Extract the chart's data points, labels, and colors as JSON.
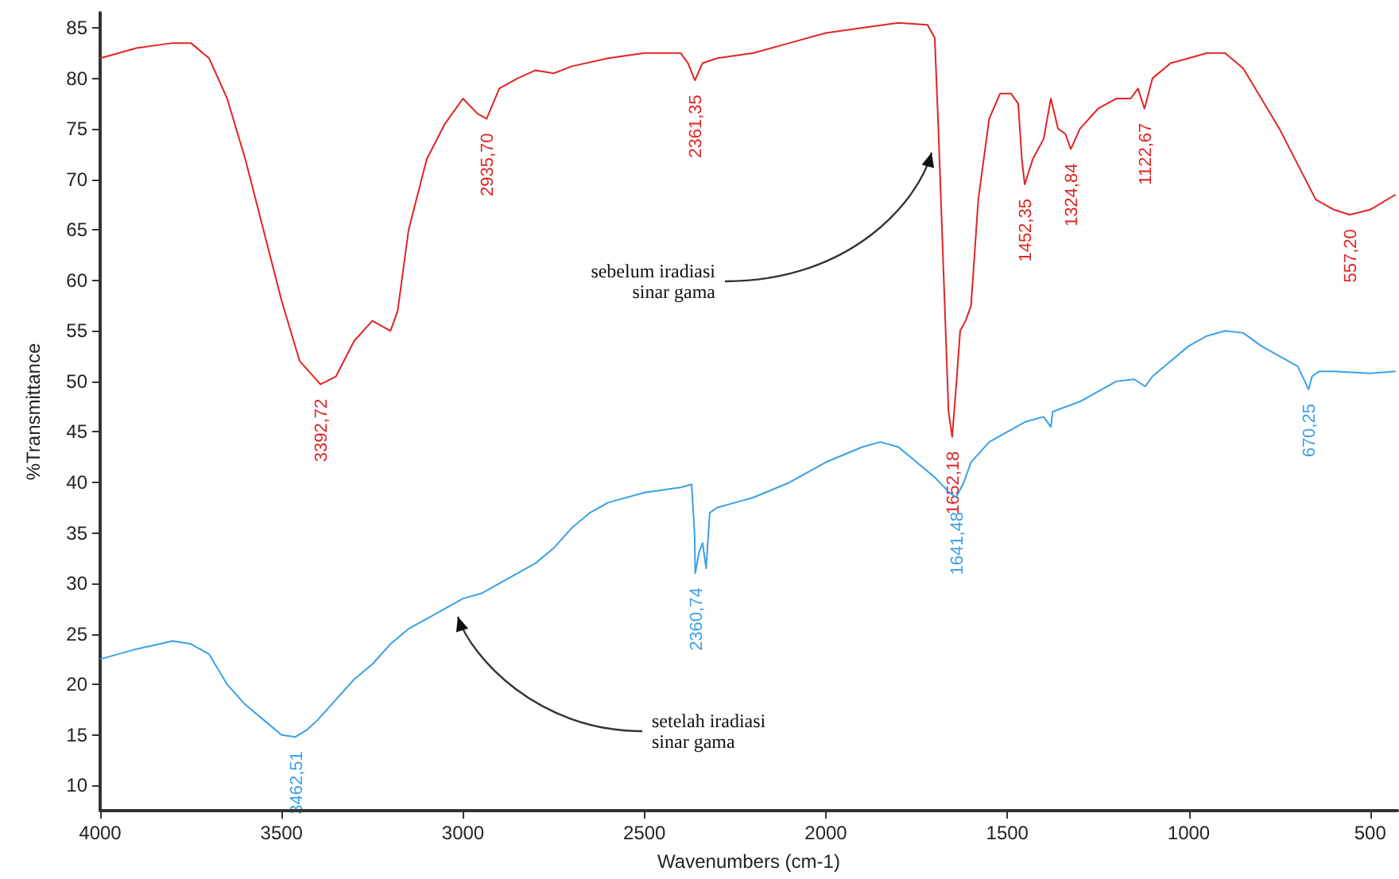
{
  "chart_data": {
    "type": "line",
    "xlabel": "Wavenumbers (cm-1)",
    "ylabel": "%Transmittance",
    "xlim": [
      4000,
      425
    ],
    "ylim": [
      7.5,
      86.5
    ],
    "xticks": [
      4000,
      3500,
      3000,
      2500,
      2000,
      1500,
      1000,
      500
    ],
    "yticks": [
      10,
      15,
      20,
      25,
      30,
      35,
      40,
      45,
      50,
      55,
      60,
      65,
      70,
      75,
      80,
      85
    ],
    "grid": false,
    "series": [
      {
        "color": "#e02424",
        "x": [
          4000,
          3900,
          3800,
          3750,
          3700,
          3650,
          3600,
          3550,
          3500,
          3450,
          3400,
          3393,
          3350,
          3300,
          3250,
          3200,
          3180,
          3150,
          3100,
          3050,
          3000,
          2960,
          2935,
          2900,
          2850,
          2800,
          2750,
          2700,
          2600,
          2500,
          2400,
          2380,
          2361,
          2340,
          2300,
          2200,
          2100,
          2000,
          1900,
          1800,
          1720,
          1700,
          1690,
          1680,
          1670,
          1662,
          1652,
          1640,
          1630,
          1615,
          1600,
          1580,
          1550,
          1520,
          1490,
          1470,
          1460,
          1452,
          1430,
          1400,
          1380,
          1360,
          1340,
          1325,
          1300,
          1250,
          1200,
          1160,
          1140,
          1122,
          1100,
          1050,
          1000,
          950,
          900,
          850,
          800,
          750,
          700,
          650,
          600,
          557,
          500,
          430
        ],
        "values": [
          82,
          83,
          83.5,
          83.5,
          82,
          78,
          72,
          65,
          58,
          52,
          50,
          49.7,
          50.5,
          54,
          56,
          55,
          57,
          65,
          72,
          75.5,
          78,
          76.5,
          76,
          79,
          80,
          80.8,
          80.5,
          81.2,
          82,
          82.5,
          82.5,
          81.5,
          79.8,
          81.5,
          82,
          82.5,
          83.5,
          84.5,
          85,
          85.5,
          85.3,
          84,
          75,
          65,
          55,
          47,
          44.5,
          50,
          55,
          56,
          57.5,
          68,
          76,
          78.5,
          78.5,
          77.5,
          72,
          69.5,
          72,
          74,
          78,
          75,
          74.5,
          73,
          75,
          77,
          78,
          78,
          79,
          77,
          80,
          81.5,
          82,
          82.5,
          82.5,
          81,
          78,
          75,
          71.5,
          68,
          67,
          66.5,
          67,
          68.5
        ]
      },
      {
        "color": "#3ba0e8",
        "x": [
          4000,
          3900,
          3800,
          3750,
          3700,
          3650,
          3600,
          3550,
          3500,
          3462,
          3430,
          3400,
          3350,
          3300,
          3250,
          3200,
          3150,
          3100,
          3050,
          3000,
          2950,
          2900,
          2850,
          2800,
          2750,
          2700,
          2650,
          2600,
          2500,
          2400,
          2370,
          2362,
          2360,
          2350,
          2340,
          2330,
          2320,
          2300,
          2250,
          2200,
          2100,
          2000,
          1900,
          1850,
          1800,
          1750,
          1700,
          1660,
          1641,
          1620,
          1600,
          1550,
          1500,
          1450,
          1400,
          1380,
          1375,
          1300,
          1250,
          1200,
          1150,
          1120,
          1100,
          1050,
          1000,
          950,
          900,
          850,
          800,
          750,
          700,
          680,
          670,
          660,
          640,
          600,
          500,
          430
        ],
        "values": [
          22.5,
          23.5,
          24.3,
          24,
          23,
          20,
          18,
          16.5,
          15,
          14.8,
          15.5,
          16.5,
          18.5,
          20.5,
          22,
          24,
          25.5,
          26.5,
          27.5,
          28.5,
          29,
          30,
          31,
          32,
          33.5,
          35.5,
          37,
          38,
          39,
          39.5,
          39.8,
          35,
          31,
          33,
          34,
          31.5,
          37,
          37.5,
          38,
          38.5,
          40,
          42,
          43.5,
          44,
          43.5,
          42,
          40.5,
          39,
          38.5,
          40,
          42,
          44,
          45,
          46,
          46.5,
          45.5,
          47,
          48,
          49,
          50,
          50.2,
          49.5,
          50.5,
          52,
          53.5,
          54.5,
          55,
          54.8,
          53.5,
          52.5,
          51.5,
          50,
          49.2,
          50.5,
          51,
          51,
          50.8,
          51
        ]
      }
    ],
    "annotations": [
      {
        "text": "3392,72",
        "x": 3393,
        "y": 49.7
      },
      {
        "text": "2935,70",
        "x": 2935,
        "y": 76
      },
      {
        "text": "2361,35",
        "x": 2361,
        "y": 79.8
      },
      {
        "text": "1652,18",
        "x": 1652,
        "y": 44.5
      },
      {
        "text": "1452,35",
        "x": 1452,
        "y": 69.5
      },
      {
        "text": "1324,84",
        "x": 1325,
        "y": 73
      },
      {
        "text": "1122,67",
        "x": 1122,
        "y": 77
      },
      {
        "text": "557,20",
        "x": 557,
        "y": 66.5
      },
      {
        "text": "3462,51",
        "x": 3462,
        "y": 14.8
      },
      {
        "text": "2360,74",
        "x": 2360,
        "y": 31
      },
      {
        "text": "1641,48",
        "x": 1641,
        "y": 38.5
      },
      {
        "text": "670,25",
        "x": 670,
        "y": 49.2
      },
      "sebelum iradiasi\nsinar gama",
      "setelah iradiasi\nsinar gama"
    ]
  }
}
